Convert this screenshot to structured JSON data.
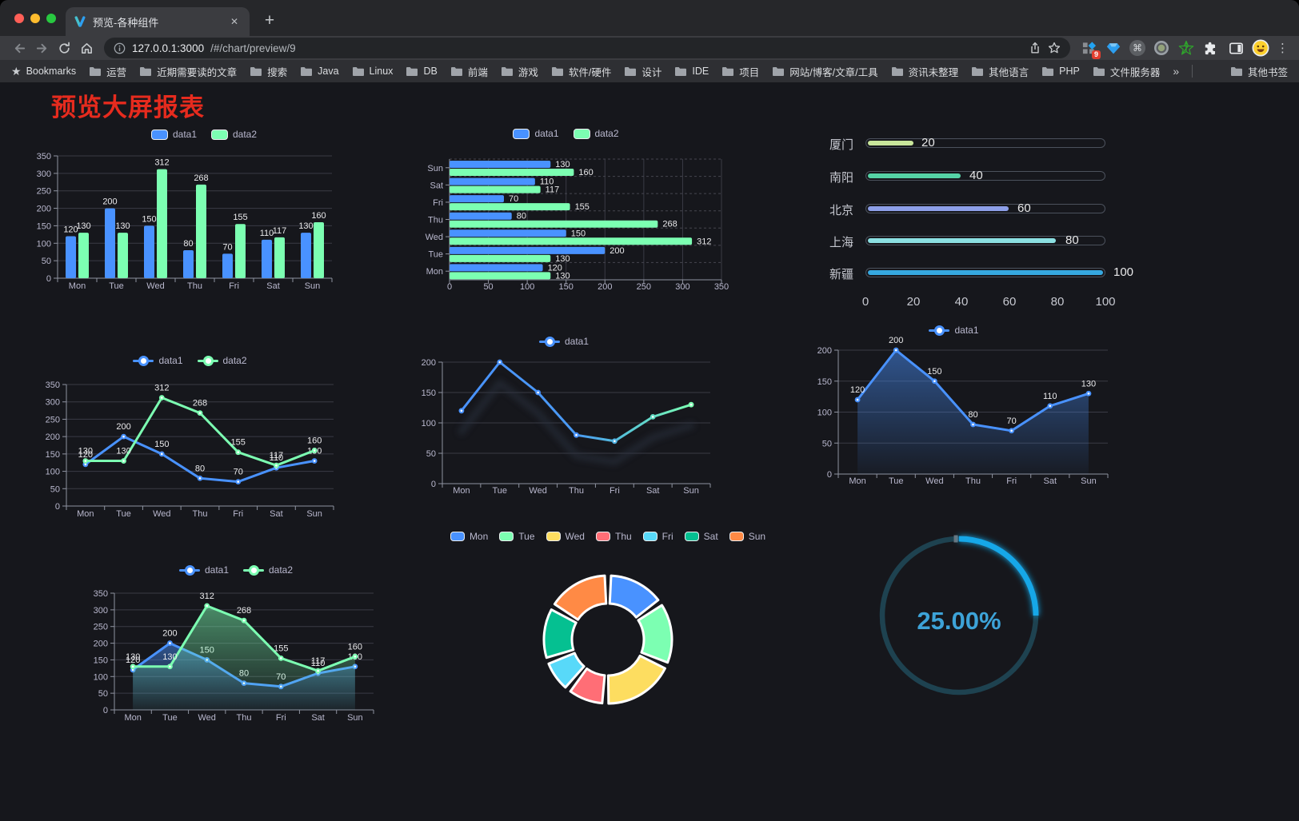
{
  "browser": {
    "tab": {
      "title": "预览-各种组件",
      "close_glyph": "✕",
      "new_tab_glyph": "+"
    },
    "url": {
      "host": "127.0.0.1:3000",
      "path": "/#/chart/preview/9"
    },
    "extensions_badge": "9",
    "bookmarks": {
      "star_label": "Bookmarks",
      "overflow_glyph": "»",
      "other_label": "其他书签",
      "items": [
        "运营",
        "近期需要读的文章",
        "搜索",
        "Java",
        "Linux",
        "DB",
        "前端",
        "游戏",
        "软件/硬件",
        "设计",
        "IDE",
        "项目",
        "网站/博客/文章/工具",
        "资讯未整理",
        "其他语言",
        "PHP",
        "文件服务器"
      ]
    }
  },
  "page": {
    "title": "预览大屏报表",
    "title_color": "#e62b1e",
    "background": "#16171c"
  },
  "palette": {
    "data1": "#4992ff",
    "data2": "#7cffb2",
    "axis_label": "#b9b8ce",
    "axis_line": "#8f93a0",
    "grid_line": "#3a3b45",
    "value_label": "#eaeaec"
  },
  "chart_data": [
    {
      "id": "bar-vertical",
      "type": "bar",
      "title": "",
      "categories": [
        "Mon",
        "Tue",
        "Wed",
        "Thu",
        "Fri",
        "Sat",
        "Sun"
      ],
      "series": [
        {
          "name": "data1",
          "color": "#4992ff",
          "values": [
            120,
            200,
            150,
            80,
            70,
            110,
            130
          ]
        },
        {
          "name": "data2",
          "color": "#7cffb2",
          "values": [
            130,
            130,
            312,
            268,
            155,
            117,
            160
          ]
        }
      ],
      "ylim": [
        0,
        350
      ],
      "ytick_step": 50,
      "legend_position": "top",
      "grid": true
    },
    {
      "id": "bar-horizontal",
      "type": "bar",
      "orientation": "horizontal",
      "categories": [
        "Mon",
        "Tue",
        "Wed",
        "Thu",
        "Fri",
        "Sat",
        "Sun"
      ],
      "series": [
        {
          "name": "data1",
          "color": "#4992ff",
          "values": [
            120,
            200,
            150,
            80,
            70,
            110,
            130
          ]
        },
        {
          "name": "data2",
          "color": "#7cffb2",
          "values": [
            130,
            130,
            312,
            268,
            155,
            117,
            160
          ]
        }
      ],
      "xlim": [
        0,
        350
      ],
      "xtick_step": 50,
      "legend_position": "top",
      "grid": true
    },
    {
      "id": "progress-bars",
      "type": "bar",
      "orientation": "horizontal",
      "style": "progress",
      "rows": [
        {
          "label": "厦门",
          "value": 20,
          "color": "#c9e69b"
        },
        {
          "label": "南阳",
          "value": 40,
          "color": "#55d3a6"
        },
        {
          "label": "北京",
          "value": 60,
          "color": "#8d9fe8"
        },
        {
          "label": "上海",
          "value": 80,
          "color": "#8ce0e2"
        },
        {
          "label": "新疆",
          "value": 100,
          "color": "#36a8e0"
        }
      ],
      "xlim": [
        0,
        100
      ],
      "xticks": [
        0,
        20,
        40,
        60,
        80,
        100
      ]
    },
    {
      "id": "line-multi",
      "type": "line",
      "categories": [
        "Mon",
        "Tue",
        "Wed",
        "Thu",
        "Fri",
        "Sat",
        "Sun"
      ],
      "series": [
        {
          "name": "data1",
          "color": "#4992ff",
          "values": [
            120,
            200,
            150,
            80,
            70,
            110,
            130
          ]
        },
        {
          "name": "data2",
          "color": "#7cffb2",
          "values": [
            130,
            130,
            312,
            268,
            155,
            117,
            160
          ]
        }
      ],
      "ylim": [
        0,
        350
      ],
      "ytick_step": 50,
      "show_labels": true,
      "legend_position": "top"
    },
    {
      "id": "line-gradient",
      "type": "line",
      "categories": [
        "Mon",
        "Tue",
        "Wed",
        "Thu",
        "Fri",
        "Sat",
        "Sun"
      ],
      "series": [
        {
          "name": "data1",
          "color": "#4992ff",
          "gradient": [
            "#4992ff",
            "#7cffb2"
          ],
          "values": [
            120,
            200,
            150,
            80,
            70,
            110,
            130
          ]
        }
      ],
      "ylim": [
        0,
        200
      ],
      "ytick_step": 50,
      "show_labels": false,
      "legend_position": "top"
    },
    {
      "id": "area-single",
      "type": "area",
      "categories": [
        "Mon",
        "Tue",
        "Wed",
        "Thu",
        "Fri",
        "Sat",
        "Sun"
      ],
      "series": [
        {
          "name": "data1",
          "color": "#4992ff",
          "values": [
            120,
            200,
            150,
            80,
            70,
            110,
            130
          ]
        }
      ],
      "ylim": [
        0,
        200
      ],
      "ytick_step": 50,
      "show_labels": true,
      "legend_position": "top"
    },
    {
      "id": "area-double",
      "type": "area",
      "categories": [
        "Mon",
        "Tue",
        "Wed",
        "Thu",
        "Fri",
        "Sat",
        "Sun"
      ],
      "series": [
        {
          "name": "data1",
          "color": "#4992ff",
          "values": [
            120,
            200,
            150,
            80,
            70,
            110,
            130
          ]
        },
        {
          "name": "data2",
          "color": "#7cffb2",
          "values": [
            130,
            130,
            312,
            268,
            155,
            117,
            160
          ]
        }
      ],
      "ylim": [
        0,
        350
      ],
      "ytick_step": 50,
      "show_labels": true,
      "legend_position": "top"
    },
    {
      "id": "donut",
      "type": "pie",
      "categories": [
        "Mon",
        "Tue",
        "Wed",
        "Thu",
        "Fri",
        "Sat",
        "Sun"
      ],
      "values": [
        120,
        130,
        150,
        80,
        70,
        110,
        130
      ],
      "colors": [
        "#4992ff",
        "#7cffb2",
        "#fddd60",
        "#ff6e76",
        "#58d9f9",
        "#05c091",
        "#ff8a45"
      ],
      "legend_position": "top"
    },
    {
      "id": "gauge",
      "type": "pie",
      "style": "gauge",
      "value": 25,
      "label": "25.00%",
      "arc_color": "#15a7e8",
      "track_color": "#1e4250",
      "text_color": "#3da3d8"
    }
  ]
}
